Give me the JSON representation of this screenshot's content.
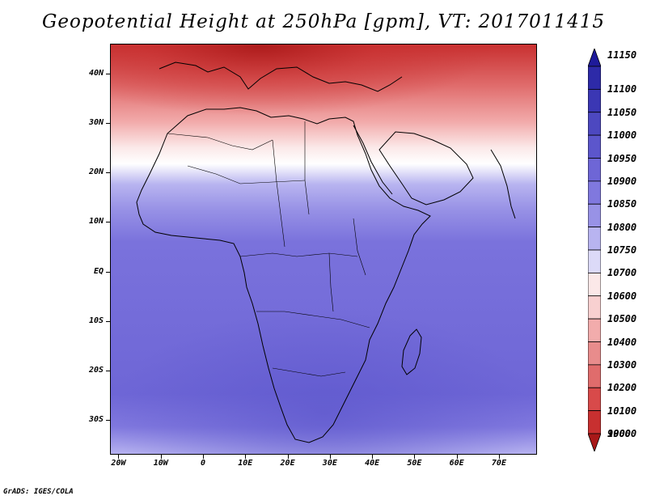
{
  "title": "Geopotential Height at 250hPa [gpm], VT: 2017011415",
  "credit": "GrADS: IGES/COLA",
  "map": {
    "projection": "latlon",
    "lon_range": [
      -22,
      79
    ],
    "lat_range": [
      -37,
      46
    ],
    "lat_ticks": [
      "40N",
      "30N",
      "20N",
      "10N",
      "EQ",
      "10S",
      "20S",
      "30S"
    ],
    "lon_ticks": [
      "20W",
      "10W",
      "0",
      "10E",
      "20E",
      "30E",
      "40E",
      "50E",
      "60E",
      "70E"
    ],
    "ocean_color": "#7a6fd9",
    "coastline_color": "#000000"
  },
  "colorbar": {
    "levels": [
      "11150",
      "11100",
      "11050",
      "11000",
      "10950",
      "10900",
      "10850",
      "10800",
      "10750",
      "10700",
      "10600",
      "10500",
      "10400",
      "10300",
      "10200",
      "10100",
      "10000",
      "9900"
    ],
    "colors": [
      "#1e1a9a",
      "#2d2aa8",
      "#3b37b4",
      "#4d48c0",
      "#5c56cc",
      "#6e66d6",
      "#8078de",
      "#9892e6",
      "#b8b4f0",
      "#dcdaf8",
      "#fbe8e8",
      "#f8d0d0",
      "#f2acac",
      "#e88c8c",
      "#e06c6c",
      "#d84a4a",
      "#c83030",
      "#a81818"
    ]
  }
}
